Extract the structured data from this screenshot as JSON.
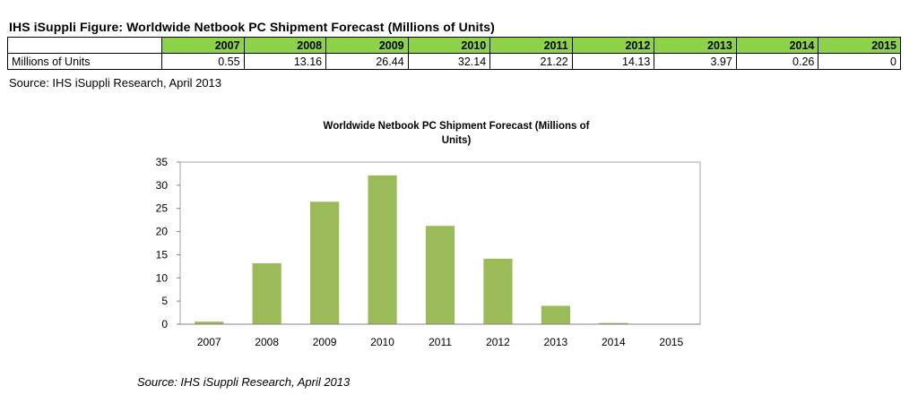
{
  "figure_title": "IHS iSuppli Figure: Worldwide Netbook PC Shipment Forecast (Millions of Units)",
  "table": {
    "row_label": "Millions of Units",
    "years": [
      "2007",
      "2008",
      "2009",
      "2010",
      "2011",
      "2012",
      "2013",
      "2014",
      "2015"
    ],
    "values": [
      "0.55",
      "13.16",
      "26.44",
      "32.14",
      "21.22",
      "14.13",
      "3.97",
      "0.26",
      "0"
    ]
  },
  "table_source": "Source: IHS iSuppli Research, April 2013",
  "chart_source": "Source: IHS iSuppli Research, April 2013",
  "chart_data": {
    "type": "bar",
    "title": [
      "Worldwide Netbook PC Shipment Forecast (Millions of",
      "Units)"
    ],
    "categories": [
      "2007",
      "2008",
      "2009",
      "2010",
      "2011",
      "2012",
      "2013",
      "2014",
      "2015"
    ],
    "values": [
      0.55,
      13.16,
      26.44,
      32.14,
      21.22,
      14.13,
      3.97,
      0.26,
      0
    ],
    "ylim": [
      0,
      35
    ],
    "yticks": [
      0,
      5,
      10,
      15,
      20,
      25,
      30,
      35
    ],
    "xlabel": "",
    "ylabel": "",
    "grid": false,
    "legend": "none",
    "bar_color": "#9bbb59"
  }
}
